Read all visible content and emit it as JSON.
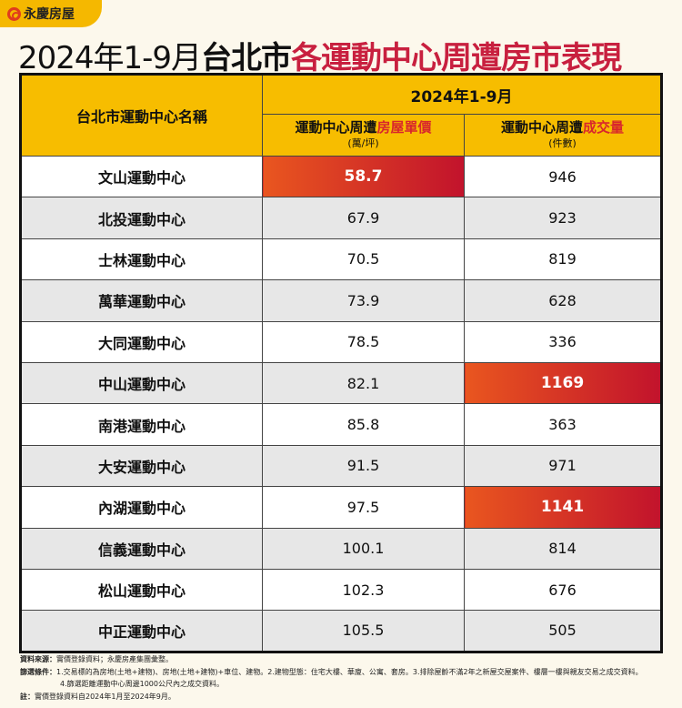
{
  "logo": {
    "text": "永慶房屋"
  },
  "title": {
    "part1": "2024年1-9月",
    "part2": "台北市",
    "part3": "各運動中心周遭房市表現"
  },
  "table": {
    "col_name": "台北市運動中心名稱",
    "period": "2024年1-9月",
    "price_header_a": "運動中心周遭",
    "price_header_b": "房屋單價",
    "price_unit": "(萬/坪)",
    "volume_header_a": "運動中心周遭",
    "volume_header_b": "成交量",
    "volume_unit": "(件數)",
    "rows": [
      {
        "name": "文山運動中心",
        "price": "58.7",
        "volume": "946",
        "highlight_price": true,
        "highlight_volume": false
      },
      {
        "name": "北投運動中心",
        "price": "67.9",
        "volume": "923",
        "highlight_price": false,
        "highlight_volume": false
      },
      {
        "name": "士林運動中心",
        "price": "70.5",
        "volume": "819",
        "highlight_price": false,
        "highlight_volume": false
      },
      {
        "name": "萬華運動中心",
        "price": "73.9",
        "volume": "628",
        "highlight_price": false,
        "highlight_volume": false
      },
      {
        "name": "大同運動中心",
        "price": "78.5",
        "volume": "336",
        "highlight_price": false,
        "highlight_volume": false
      },
      {
        "name": "中山運動中心",
        "price": "82.1",
        "volume": "1169",
        "highlight_price": false,
        "highlight_volume": true
      },
      {
        "name": "南港運動中心",
        "price": "85.8",
        "volume": "363",
        "highlight_price": false,
        "highlight_volume": false
      },
      {
        "name": "大安運動中心",
        "price": "91.5",
        "volume": "971",
        "highlight_price": false,
        "highlight_volume": false
      },
      {
        "name": "內湖運動中心",
        "price": "97.5",
        "volume": "1141",
        "highlight_price": false,
        "highlight_volume": true
      },
      {
        "name": "信義運動中心",
        "price": "100.1",
        "volume": "814",
        "highlight_price": false,
        "highlight_volume": false
      },
      {
        "name": "松山運動中心",
        "price": "102.3",
        "volume": "676",
        "highlight_price": false,
        "highlight_volume": false
      },
      {
        "name": "中正運動中心",
        "price": "105.5",
        "volume": "505",
        "highlight_price": false,
        "highlight_volume": false
      }
    ]
  },
  "notes": {
    "source_label": "資料來源：",
    "source": "實價登錄資料；永慶房產集團彙整。",
    "filter_label": "篩選條件：",
    "filter1": "1.交易標的為房地(土地+建物)、房地(土地+建物)+車位、建物。2.建物型態：住宅大樓、華廈、公寓、套房。3.排除屋齡不滿2年之新屋交屋案件、樓層一樓與親友交易之成交資料。",
    "filter2": "4.篩選距離運動中心周邊1000公尺內之成交資料。",
    "note_label": "註：",
    "note": "實價登錄資料自2024年1月至2024年9月。"
  },
  "colors": {
    "header": "#f7bd00",
    "highlight_start": "#e9561f",
    "highlight_end": "#c2132c",
    "title_accent": "#c8203f"
  }
}
